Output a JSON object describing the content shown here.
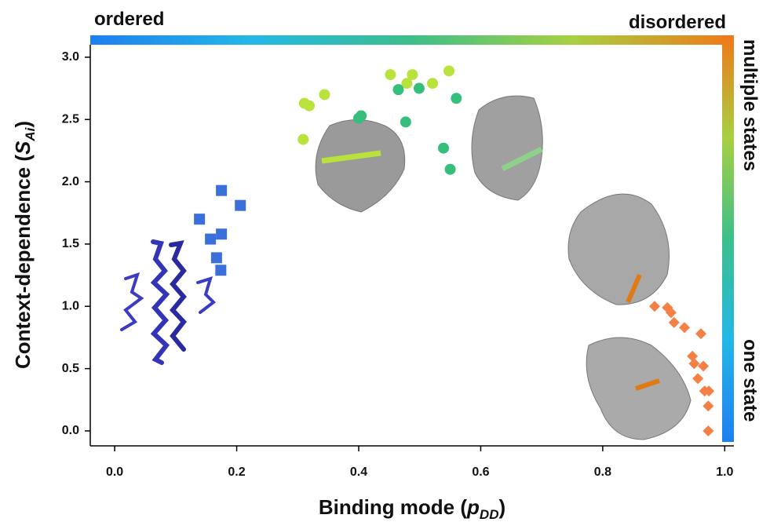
{
  "chart_data": {
    "type": "scatter",
    "x_label": [
      "Binding mode (",
      "p",
      "DD",
      ")"
    ],
    "y_label": [
      "Context-dependence (",
      "S",
      "Ai",
      ")"
    ],
    "top_left_label": "ordered",
    "top_right_label": "disordered",
    "right_top_label": "multiple states",
    "right_bottom_label": "one state",
    "gradient_colors": [
      "#1e7ff0",
      "#22b8e8",
      "#3cbf8a",
      "#a8d040",
      "#f07818"
    ],
    "xlim": [
      -0.04,
      1.015
    ],
    "ylim": [
      -0.12,
      3.1
    ],
    "xticks": [
      {
        "value": 0,
        "label": "0.0"
      },
      0.2,
      0.4,
      0.6,
      0.8,
      {
        "value": 1,
        "label": "1.0"
      }
    ],
    "yticks": [
      {
        "value": 0,
        "label": "0.0"
      },
      0.5,
      {
        "value": 1,
        "label": "1.0"
      },
      1.5,
      {
        "value": 2,
        "label": "2.0"
      },
      2.5,
      {
        "value": 3,
        "label": "3.0"
      }
    ],
    "grid": false,
    "series": [
      {
        "marker": "square",
        "color": "#3b6fdc",
        "x": [
          0.139,
          0.157,
          0.175,
          0.175,
          0.206,
          0.167,
          0.174
        ],
        "values": [
          1.7,
          1.54,
          1.58,
          1.93,
          1.81,
          1.39,
          1.29
        ]
      },
      {
        "marker": "circle",
        "color": "#b9e23c",
        "x": [
          0.309,
          0.311,
          0.319,
          0.344,
          0.452,
          0.479,
          0.488,
          0.521,
          0.548
        ],
        "values": [
          2.34,
          2.63,
          2.61,
          2.7,
          2.86,
          2.79,
          2.86,
          2.79,
          2.89
        ]
      },
      {
        "marker": "circle",
        "color": "#36bf7c",
        "x": [
          0.4,
          0.404,
          0.465,
          0.477,
          0.499,
          0.539,
          0.55,
          0.56
        ],
        "values": [
          2.51,
          2.53,
          2.74,
          2.48,
          2.75,
          2.27,
          2.1,
          2.67
        ]
      },
      {
        "marker": "diamond",
        "color": "#f58046",
        "x": [
          0.885,
          0.906,
          0.912,
          0.917,
          0.934,
          0.961,
          0.947,
          0.95,
          0.965,
          0.956,
          0.967,
          0.974,
          0.973,
          0.973
        ],
        "values": [
          1.0,
          0.99,
          0.95,
          0.87,
          0.83,
          0.78,
          0.6,
          0.54,
          0.52,
          0.42,
          0.32,
          0.32,
          0.2,
          0.0
        ]
      }
    ]
  }
}
